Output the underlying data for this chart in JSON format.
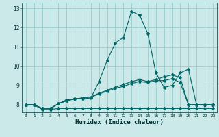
{
  "xlabel": "Humidex (Indice chaleur)",
  "background_color": "#cce9e9",
  "grid_color": "#99cccc",
  "line_color": "#006666",
  "xlim": [
    -0.5,
    23.5
  ],
  "ylim": [
    7.6,
    13.3
  ],
  "yticks": [
    8,
    9,
    10,
    11,
    12,
    13
  ],
  "xticks": [
    0,
    1,
    2,
    3,
    4,
    5,
    6,
    7,
    8,
    9,
    10,
    11,
    12,
    13,
    14,
    15,
    16,
    17,
    18,
    19,
    20,
    21,
    22,
    23
  ],
  "lines": [
    {
      "x": [
        0,
        1,
        2,
        3,
        4,
        5,
        6,
        7,
        8,
        9,
        10,
        11,
        12,
        13,
        14,
        15,
        16,
        17,
        18,
        19,
        20,
        21,
        22,
        23
      ],
      "y": [
        8.0,
        8.0,
        7.8,
        7.8,
        8.05,
        8.25,
        8.3,
        8.3,
        8.35,
        9.2,
        10.3,
        11.2,
        11.5,
        12.85,
        12.65,
        11.7,
        9.65,
        8.9,
        9.0,
        9.65,
        9.85,
        8.0,
        8.0,
        8.0
      ]
    },
    {
      "x": [
        0,
        1,
        2,
        3,
        4,
        5,
        6,
        7,
        8,
        9,
        10,
        11,
        12,
        13,
        14,
        15,
        16,
        17,
        18,
        19,
        20,
        21,
        22,
        23
      ],
      "y": [
        8.0,
        8.0,
        7.8,
        7.8,
        8.05,
        8.2,
        8.3,
        8.35,
        8.4,
        8.6,
        8.75,
        8.9,
        9.05,
        9.2,
        9.3,
        9.2,
        9.3,
        9.45,
        9.55,
        9.4,
        8.0,
        8.0,
        8.0,
        8.0
      ]
    },
    {
      "x": [
        0,
        1,
        2,
        3,
        4,
        5,
        6,
        7,
        8,
        9,
        10,
        11,
        12,
        13,
        14,
        15,
        16,
        17,
        18,
        19,
        20,
        21,
        22,
        23
      ],
      "y": [
        8.0,
        8.0,
        7.8,
        7.8,
        8.05,
        8.2,
        8.3,
        8.35,
        8.4,
        8.55,
        8.7,
        8.85,
        8.95,
        9.1,
        9.2,
        9.15,
        9.25,
        9.25,
        9.35,
        9.15,
        8.0,
        8.0,
        8.0,
        8.0
      ]
    },
    {
      "x": [
        0,
        1,
        2,
        3,
        4,
        5,
        6,
        7,
        8,
        9,
        10,
        11,
        12,
        13,
        14,
        15,
        16,
        17,
        18,
        19,
        20,
        21,
        22,
        23
      ],
      "y": [
        8.0,
        8.0,
        7.75,
        7.75,
        7.8,
        7.8,
        7.8,
        7.8,
        7.8,
        7.8,
        7.8,
        7.8,
        7.8,
        7.8,
        7.8,
        7.8,
        7.8,
        7.8,
        7.8,
        7.8,
        7.8,
        7.8,
        7.8,
        7.8
      ]
    }
  ]
}
